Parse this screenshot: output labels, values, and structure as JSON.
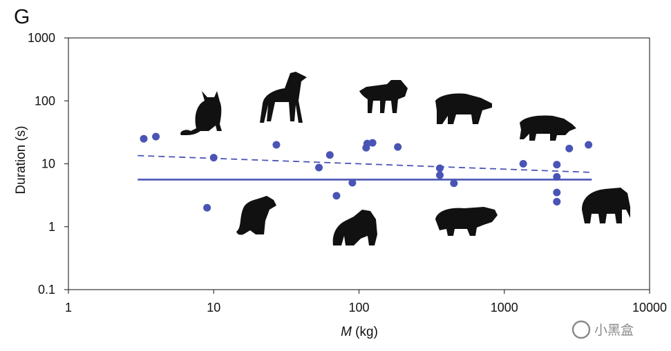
{
  "panel_letter": "G",
  "watermark": "小黑盒",
  "chart_data": {
    "type": "scatter",
    "title": "",
    "xlabel_italic": "M",
    "xlabel_rest": " (kg)",
    "ylabel": "Duration (s)",
    "x_scale": "log",
    "y_scale": "log",
    "xlim": [
      1,
      10000
    ],
    "ylim": [
      0.1,
      1000
    ],
    "x_ticks": [
      1,
      10,
      100,
      1000,
      10000
    ],
    "x_tick_labels": [
      "1",
      "10",
      "100",
      "1000",
      "10000"
    ],
    "y_ticks": [
      0.1,
      1,
      10,
      100,
      1000
    ],
    "y_tick_labels": [
      "0.1",
      "1",
      "10",
      "100",
      "1000"
    ],
    "grid": false,
    "points_color": "#4a54b5",
    "points": [
      {
        "x": 3.3,
        "y": 25
      },
      {
        "x": 4.0,
        "y": 27
      },
      {
        "x": 9.0,
        "y": 2.0
      },
      {
        "x": 10.0,
        "y": 12.5
      },
      {
        "x": 27,
        "y": 20
      },
      {
        "x": 53,
        "y": 8.7
      },
      {
        "x": 63,
        "y": 13.8
      },
      {
        "x": 70,
        "y": 3.1
      },
      {
        "x": 90,
        "y": 5.0
      },
      {
        "x": 112,
        "y": 18
      },
      {
        "x": 114,
        "y": 21
      },
      {
        "x": 124,
        "y": 21.5
      },
      {
        "x": 185,
        "y": 18.5
      },
      {
        "x": 360,
        "y": 8.5
      },
      {
        "x": 360,
        "y": 6.6
      },
      {
        "x": 450,
        "y": 4.9
      },
      {
        "x": 1350,
        "y": 10.0
      },
      {
        "x": 2300,
        "y": 9.7
      },
      {
        "x": 2300,
        "y": 6.2
      },
      {
        "x": 2300,
        "y": 3.5
      },
      {
        "x": 2300,
        "y": 2.5
      },
      {
        "x": 2800,
        "y": 17.5
      },
      {
        "x": 3800,
        "y": 20
      }
    ],
    "lines": [
      {
        "style": "solid",
        "color": "#4a54b5",
        "x": [
          3,
          4000
        ],
        "y": [
          5.6,
          5.6
        ]
      },
      {
        "style": "dashed",
        "color": "#4a54b5",
        "x": [
          3,
          4000
        ],
        "y": [
          13.5,
          7.3
        ]
      }
    ],
    "silhouettes": [
      "cat",
      "greyhound",
      "lion",
      "bear",
      "rhinoceros",
      "dog",
      "gorilla",
      "hippopotamus",
      "elephant"
    ]
  }
}
